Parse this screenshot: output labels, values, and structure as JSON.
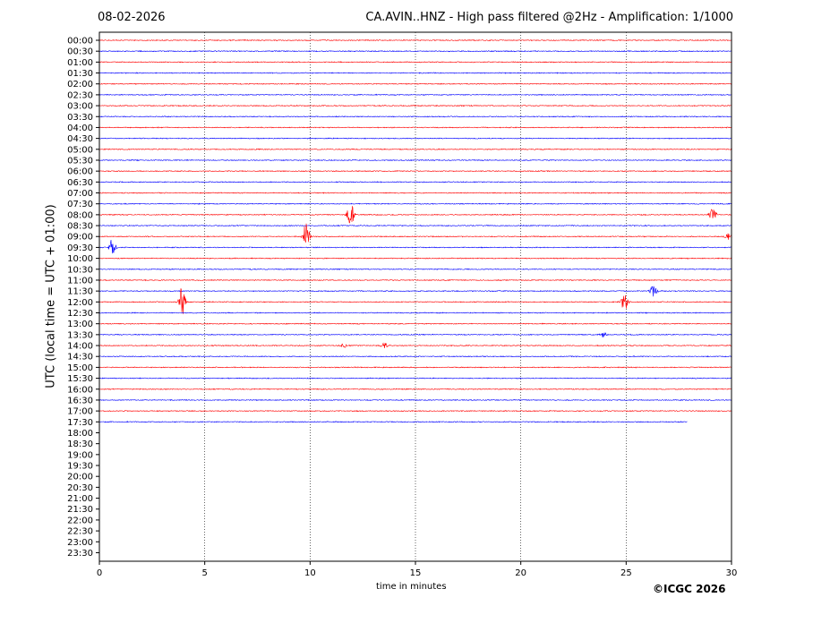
{
  "header": {
    "date": "08-02-2026",
    "title": "CA.AVIN..HNZ - High pass filtered @2Hz - Amplification: 1/1000"
  },
  "credit": "©ICGC 2026",
  "chart_data": {
    "type": "seismogram",
    "xlabel": "time in minutes",
    "ylabel": "UTC (local time = UTC + 01:00)",
    "xlim": [
      0,
      30
    ],
    "x_ticks": [
      "0",
      "5",
      "10",
      "15",
      "20",
      "25",
      "30"
    ],
    "y_tick_labels": [
      "00:00",
      "00:30",
      "01:00",
      "01:30",
      "02:00",
      "02:30",
      "03:00",
      "03:30",
      "04:00",
      "04:30",
      "05:00",
      "05:30",
      "06:00",
      "06:30",
      "07:00",
      "07:30",
      "08:00",
      "08:30",
      "09:00",
      "09:30",
      "10:00",
      "10:30",
      "11:00",
      "11:30",
      "12:00",
      "12:30",
      "13:00",
      "13:30",
      "14:00",
      "14:30",
      "15:00",
      "15:30",
      "16:00",
      "16:30",
      "17:00",
      "17:30",
      "18:00",
      "18:30",
      "19:00",
      "19:30",
      "20:00",
      "20:30",
      "21:00",
      "21:30",
      "22:00",
      "22:30",
      "23:00",
      "23:30"
    ],
    "trace_colors": [
      "#ff0000",
      "#0000ff"
    ],
    "last_trace": {
      "label": "17:30",
      "end_minute": 27.9
    },
    "vertical_grid_minutes": [
      5,
      10,
      15,
      20,
      25
    ],
    "events": [
      {
        "trace": "08:00",
        "minute": 11.9,
        "amplitude": 1.8
      },
      {
        "trace": "08:00",
        "minute": 29.1,
        "amplitude": 0.8
      },
      {
        "trace": "09:00",
        "minute": 9.8,
        "amplitude": 1.6
      },
      {
        "trace": "09:00",
        "minute": 29.8,
        "amplitude": 0.4
      },
      {
        "trace": "09:30",
        "minute": 0.6,
        "amplitude": 1.0
      },
      {
        "trace": "11:30",
        "minute": 26.3,
        "amplitude": 0.7
      },
      {
        "trace": "12:00",
        "minute": 3.9,
        "amplitude": 2.0
      },
      {
        "trace": "12:00",
        "minute": 24.9,
        "amplitude": 1.2
      },
      {
        "trace": "14:00",
        "minute": 11.6,
        "amplitude": 0.25
      },
      {
        "trace": "14:00",
        "minute": 13.5,
        "amplitude": 0.4
      },
      {
        "trace": "13:30",
        "minute": 23.9,
        "amplitude": 0.3
      }
    ]
  }
}
